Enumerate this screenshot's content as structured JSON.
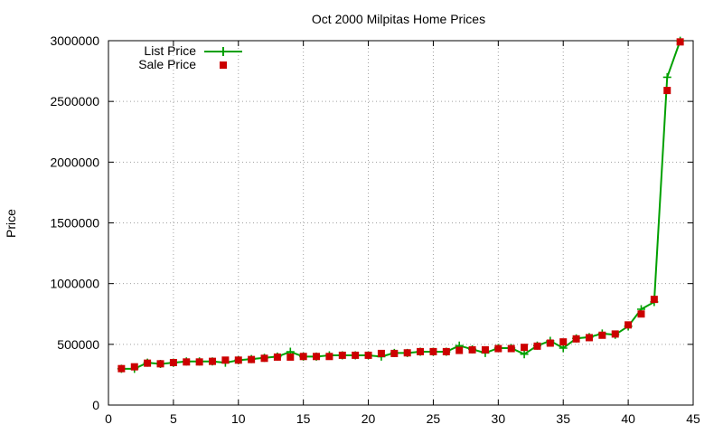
{
  "chart_data": {
    "type": "line",
    "title": "Oct 2000 Milpitas Home Prices",
    "xlabel": "",
    "ylabel": "Price",
    "xlim": [
      0,
      45
    ],
    "ylim": [
      0,
      3000000
    ],
    "x_ticks": [
      0,
      5,
      10,
      15,
      20,
      25,
      30,
      35,
      40,
      45
    ],
    "y_ticks": [
      0,
      500000,
      1000000,
      1500000,
      2000000,
      2500000,
      3000000
    ],
    "x_tick_labels": [
      "0",
      "5",
      "10",
      "15",
      "20",
      "25",
      "30",
      "35",
      "40",
      "45"
    ],
    "y_tick_labels": [
      "0",
      "500000",
      "1000000",
      "1500000",
      "2000000",
      "2500000",
      "3000000"
    ],
    "grid": true,
    "legend_position": "top-left",
    "series": [
      {
        "name": "List Price",
        "type": "line",
        "marker": "plus",
        "color": "#00a000",
        "x": [
          1,
          2,
          3,
          4,
          5,
          6,
          7,
          8,
          9,
          10,
          11,
          12,
          13,
          14,
          15,
          16,
          17,
          18,
          19,
          20,
          21,
          22,
          23,
          24,
          25,
          26,
          27,
          28,
          29,
          30,
          31,
          32,
          33,
          34,
          35,
          36,
          37,
          38,
          39,
          40,
          41,
          42,
          43,
          44
        ],
        "values": [
          299000,
          299000,
          349000,
          339000,
          349000,
          359000,
          359000,
          359000,
          349000,
          369000,
          379000,
          389000,
          399000,
          439000,
          399000,
          399000,
          409000,
          409000,
          409000,
          409000,
          399000,
          429000,
          429000,
          439000,
          439000,
          439000,
          489000,
          459000,
          429000,
          469000,
          469000,
          419000,
          489000,
          529000,
          469000,
          549000,
          559000,
          589000,
          579000,
          649000,
          789000,
          849000,
          2699000,
          2999000
        ]
      },
      {
        "name": "Sale Price",
        "type": "scatter",
        "marker": "square",
        "color": "#cc0000",
        "x": [
          1,
          2,
          3,
          4,
          5,
          6,
          7,
          8,
          9,
          10,
          11,
          12,
          13,
          14,
          15,
          16,
          17,
          18,
          19,
          20,
          21,
          22,
          23,
          24,
          25,
          26,
          27,
          28,
          29,
          30,
          31,
          32,
          33,
          34,
          35,
          36,
          37,
          38,
          39,
          40,
          41,
          42,
          43,
          44
        ],
        "values": [
          300000,
          315000,
          345000,
          340000,
          350000,
          355000,
          355000,
          360000,
          370000,
          370000,
          375000,
          385000,
          395000,
          395000,
          400000,
          400000,
          400000,
          410000,
          410000,
          410000,
          425000,
          425000,
          430000,
          440000,
          440000,
          440000,
          450000,
          455000,
          455000,
          465000,
          465000,
          475000,
          485000,
          510000,
          520000,
          545000,
          555000,
          575000,
          585000,
          660000,
          750000,
          870000,
          2590000,
          2990000
        ]
      }
    ]
  }
}
